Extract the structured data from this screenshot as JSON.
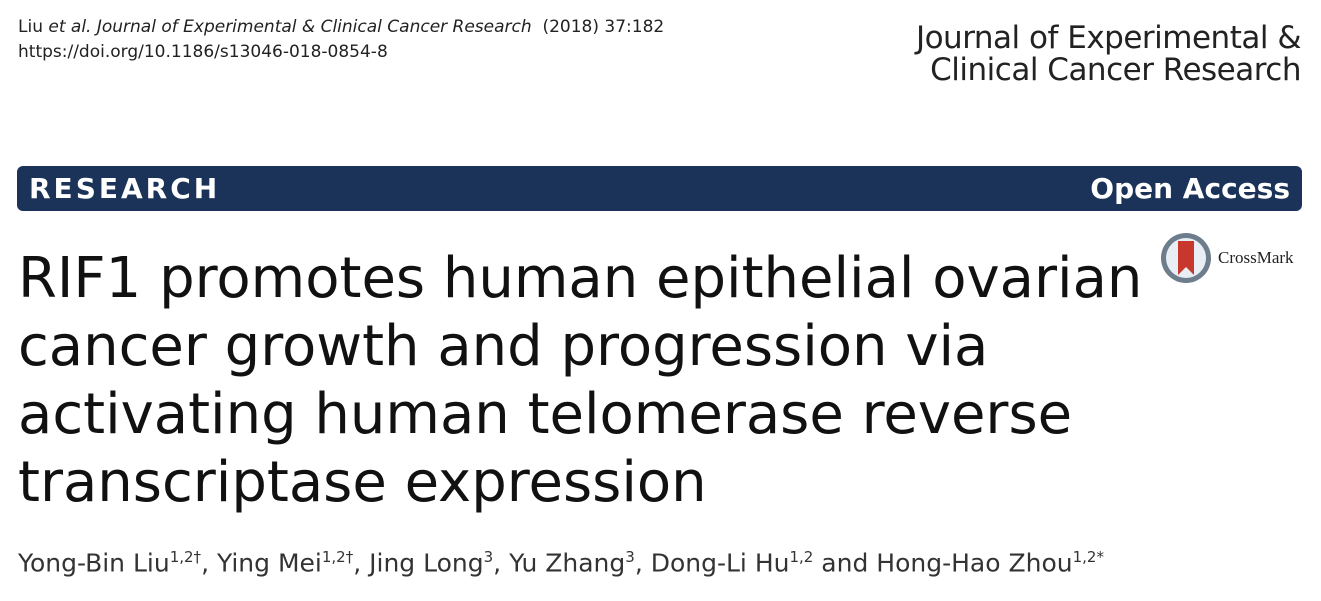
{
  "header": {
    "citation": {
      "authors": "Liu",
      "etal": "et al.",
      "journal": "Journal of Experimental & Clinical Cancer Research",
      "year_volume": "(2018) 37:182"
    },
    "doi": "https://doi.org/10.1186/s13046-018-0854-8",
    "journal_logo": [
      "Journal of Experimental &",
      "Clinical Cancer Research"
    ]
  },
  "banner": {
    "type": "RESEARCH",
    "access": "Open Access"
  },
  "crossmark": "CrossMark",
  "title": [
    "RIF1 promotes human epithelial ovarian",
    "cancer growth and progression via",
    "activating human telomerase reverse",
    "transcriptase expression"
  ],
  "authors": {
    "list": [
      {
        "name": "Yong-Bin Liu",
        "sup": "1,2†"
      },
      {
        "name": "Ying Mei",
        "sup": "1,2†"
      },
      {
        "name": "Jing Long",
        "sup": "3"
      },
      {
        "name": "Yu Zhang",
        "sup": "3"
      },
      {
        "name": "Dong-Li Hu",
        "sup": "1,2"
      },
      {
        "name": "Hong-Hao Zhou",
        "sup": "1,2*"
      }
    ],
    "separator": ",",
    "conjunction": "and"
  }
}
